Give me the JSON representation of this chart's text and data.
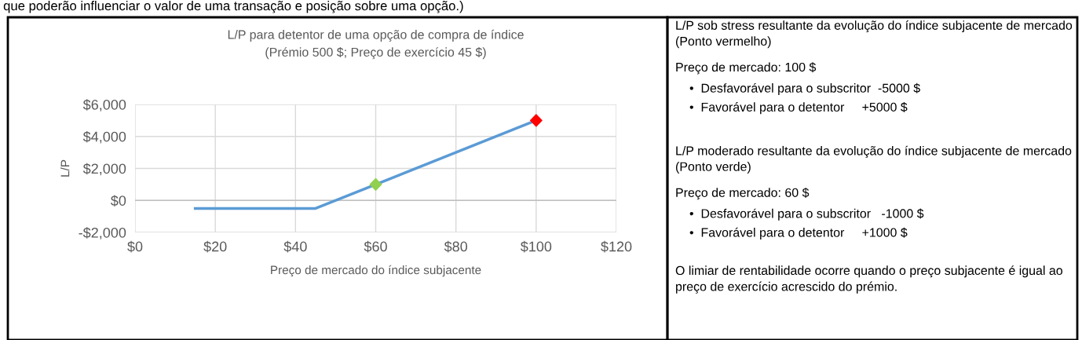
{
  "chart_data": [
    {
      "type": "line",
      "title": "L/P para detentor de uma opção de compra de índice\n(Prémio 500 $; Preço de exercício 45 $)",
      "xlabel": "Preço de mercado do índice subjacente",
      "ylabel": "L/P",
      "series": [
        {
          "type": "line",
          "color": "#5b9bd5",
          "x": [
            15,
            45,
            100
          ],
          "values": [
            -500,
            -500,
            5000
          ],
          "marker": "none"
        },
        {
          "type": "scatter",
          "color": "#92d050",
          "x": [
            60
          ],
          "values": [
            1000
          ],
          "marker": "diamond"
        },
        {
          "type": "scatter",
          "color": "#ff0000",
          "x": [
            100
          ],
          "values": [
            5000
          ],
          "marker": "diamond"
        }
      ],
      "xlim": [
        0,
        120
      ],
      "xticks": [
        {
          "value": 0,
          "label": "$0"
        },
        {
          "value": 20,
          "label": "$20"
        },
        {
          "value": 40,
          "label": "$40"
        },
        {
          "value": 60,
          "label": "$60"
        },
        {
          "value": 80,
          "label": "$80"
        },
        {
          "value": 100,
          "label": "$100"
        },
        {
          "value": 120,
          "label": "$120"
        }
      ],
      "ylim": [
        -2000,
        6000
      ],
      "yticks": [
        {
          "value": -2000,
          "label": "-$2,000"
        },
        {
          "value": 0,
          "label": "$0"
        },
        {
          "value": 2000,
          "label": "$2,000"
        },
        {
          "value": 4000,
          "label": "$4,000"
        },
        {
          "value": 6000,
          "label": "$6,000"
        }
      ],
      "grid": true,
      "legend": false,
      "annotations": [
        "que poderão influenciar o valor de uma transação e posição sobre uma opção.)"
      ]
    },
    {
      "type": "other",
      "annotations": [
        "L/P sob stress resultante da evolução do índice subjacente de mercado (Ponto vermelho)",
        "Preço de mercado: 100 $",
        "•  Desfavorável para o subscritor  -5000 $",
        "•  Favorável para o detentor     +5000 $",
        "L/P moderado resultante da evolução do índice subjacente de mercado (Ponto verde)",
        "Preço de mercado: 60 $",
        "•  Desfavorável para o subscritor   -1000 $",
        "•  Favorável para o detentor     +1000 $",
        "O limiar de rentabilidade ocorre quando o preço subjacente é igual ao preço de exercício acrescido do prémio."
      ]
    }
  ]
}
